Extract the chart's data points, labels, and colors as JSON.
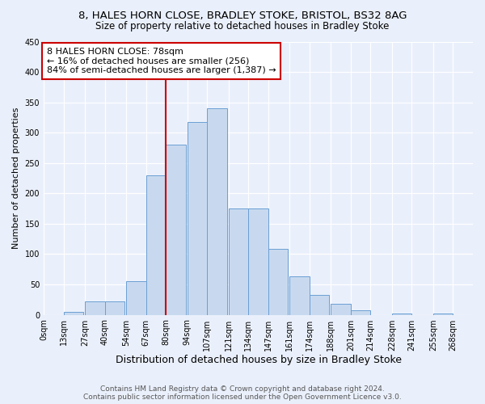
{
  "title_line1": "8, HALES HORN CLOSE, BRADLEY STOKE, BRISTOL, BS32 8AG",
  "title_line2": "Size of property relative to detached houses in Bradley Stoke",
  "xlabel": "Distribution of detached houses by size in Bradley Stoke",
  "ylabel": "Number of detached properties",
  "bar_left_edges": [
    0,
    13,
    27,
    40,
    54,
    67,
    80,
    94,
    107,
    121,
    134,
    147,
    161,
    174,
    188,
    201,
    214,
    228,
    241,
    255
  ],
  "bar_heights": [
    0,
    5,
    22,
    22,
    55,
    230,
    280,
    318,
    340,
    175,
    175,
    108,
    63,
    33,
    18,
    8,
    0,
    2,
    0,
    2
  ],
  "bin_width": 13,
  "bar_facecolor": "#c8d9ef",
  "bar_edgecolor": "#6b9fd4",
  "vline_x": 80,
  "vline_color": "#cc0000",
  "annotation_text": "8 HALES HORN CLOSE: 78sqm\n← 16% of detached houses are smaller (256)\n84% of semi-detached houses are larger (1,387) →",
  "annotation_box_facecolor": "#ffffff",
  "annotation_box_edgecolor": "#cc0000",
  "ylim": [
    0,
    450
  ],
  "yticks": [
    0,
    50,
    100,
    150,
    200,
    250,
    300,
    350,
    400,
    450
  ],
  "xtick_labels": [
    "0sqm",
    "13sqm",
    "27sqm",
    "40sqm",
    "54sqm",
    "67sqm",
    "80sqm",
    "94sqm",
    "107sqm",
    "121sqm",
    "134sqm",
    "147sqm",
    "161sqm",
    "174sqm",
    "188sqm",
    "201sqm",
    "214sqm",
    "228sqm",
    "241sqm",
    "255sqm",
    "268sqm"
  ],
  "xtick_positions": [
    0,
    13,
    27,
    40,
    54,
    67,
    80,
    94,
    107,
    121,
    134,
    147,
    161,
    174,
    188,
    201,
    214,
    228,
    241,
    255,
    268
  ],
  "background_color": "#eaf0fb",
  "grid_color": "#ffffff",
  "footer_text": "Contains HM Land Registry data © Crown copyright and database right 2024.\nContains public sector information licensed under the Open Government Licence v3.0.",
  "title_fontsize": 9.5,
  "subtitle_fontsize": 8.5,
  "xlabel_fontsize": 9,
  "ylabel_fontsize": 8,
  "tick_fontsize": 7,
  "annotation_fontsize": 8,
  "footer_fontsize": 6.5
}
